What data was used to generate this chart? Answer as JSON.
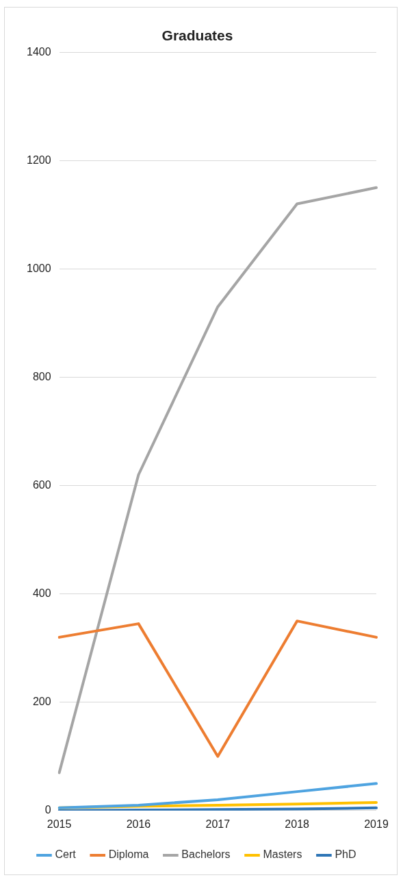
{
  "chart_data": {
    "type": "line",
    "title": "Graduates",
    "categories": [
      "2015",
      "2016",
      "2017",
      "2018",
      "2019"
    ],
    "series": [
      {
        "name": "Cert",
        "color": "#4ea3e0",
        "values": [
          5,
          10,
          20,
          35,
          50
        ]
      },
      {
        "name": "Diploma",
        "color": "#ed7d31",
        "values": [
          320,
          345,
          100,
          350,
          320
        ]
      },
      {
        "name": "Bachelors",
        "color": "#a5a5a5",
        "values": [
          70,
          620,
          930,
          1120,
          1150
        ]
      },
      {
        "name": "Masters",
        "color": "#ffc000",
        "values": [
          5,
          8,
          10,
          12,
          15
        ]
      },
      {
        "name": "PhD",
        "color": "#2e75b6",
        "values": [
          0,
          1,
          2,
          3,
          5
        ]
      }
    ],
    "ylim": [
      0,
      1400
    ],
    "yticks": [
      0,
      200,
      400,
      600,
      800,
      1000,
      1200,
      1400
    ],
    "grid": "y",
    "legend": "bottom",
    "marker": "none",
    "line_style": "solid"
  }
}
